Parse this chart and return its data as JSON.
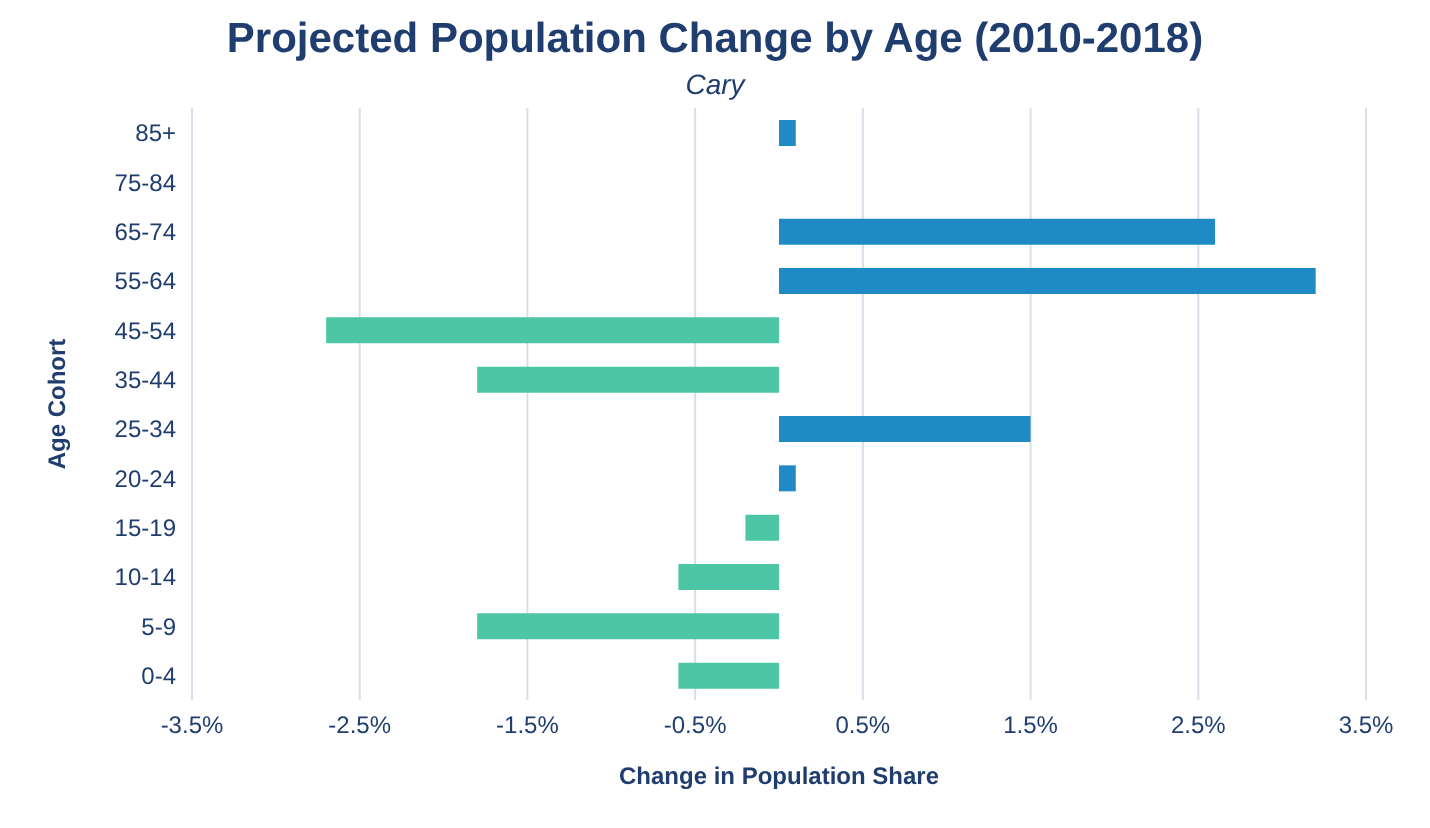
{
  "chart_data": {
    "type": "bar",
    "orientation": "horizontal",
    "title": "Projected Population Change by Age (2010-2018)",
    "subtitle": "Cary",
    "xlabel": "Change in Population Share",
    "ylabel": "Age Cohort",
    "categories": [
      "85+",
      "75-84",
      "65-74",
      "55-64",
      "45-54",
      "35-44",
      "25-34",
      "20-24",
      "15-19",
      "10-14",
      "5-9",
      "0-4"
    ],
    "values": [
      0.1,
      0,
      2.6,
      3.2,
      -2.7,
      -1.8,
      1.5,
      0.1,
      -0.2,
      -0.6,
      -1.8,
      -0.6
    ],
    "colors": [
      "#1f8bc6",
      "#1f8bc6",
      "#1f8bc6",
      "#1f8bc6",
      "#4dc6a6",
      "#4dc6a6",
      "#1f8bc6",
      "#1f8bc6",
      "#4dc6a6",
      "#4dc6a6",
      "#4dc6a6",
      "#4dc6a6"
    ],
    "xlim": [
      -3.5,
      3.5
    ],
    "xticks": [
      {
        "value": -3.5,
        "label": "-3.5%"
      },
      {
        "value": -2.5,
        "label": "-2.5%"
      },
      {
        "value": -1.5,
        "label": "-1.5%"
      },
      {
        "value": -0.5,
        "label": "-0.5%"
      },
      {
        "value": 0.5,
        "label": "0.5%"
      },
      {
        "value": 1.5,
        "label": "1.5%"
      },
      {
        "value": 2.5,
        "label": "2.5%"
      },
      {
        "value": 3.5,
        "label": "3.5%"
      }
    ],
    "grid": "x",
    "legend": false
  }
}
